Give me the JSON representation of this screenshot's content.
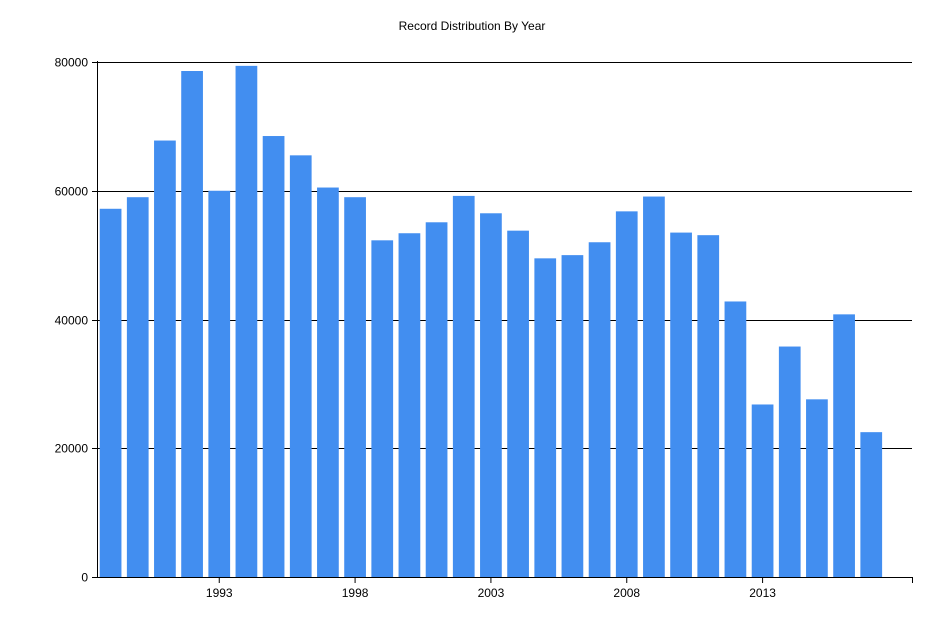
{
  "chart_data": {
    "type": "bar",
    "title": "Record Distribution By Year",
    "xlabel": "",
    "ylabel": "",
    "categories": [
      "1989",
      "1990",
      "1991",
      "1992",
      "1993",
      "1994",
      "1995",
      "1996",
      "1997",
      "1998",
      "1999",
      "2000",
      "2001",
      "2002",
      "2003",
      "2004",
      "2005",
      "2006",
      "2007",
      "2008",
      "2009",
      "2010",
      "2011",
      "2012",
      "2013",
      "2014",
      "2015",
      "2016",
      "2017",
      "2018"
    ],
    "values": [
      57200,
      59000,
      67800,
      78600,
      60000,
      79400,
      68500,
      65500,
      60500,
      59000,
      52300,
      53400,
      55100,
      59200,
      56500,
      53800,
      49500,
      50000,
      52000,
      56800,
      59100,
      53500,
      53100,
      42800,
      26800,
      35800,
      27600,
      40800,
      22500,
      0
    ],
    "x_tick_labels": [
      "1993",
      "1998",
      "2003",
      "2008",
      "2013"
    ],
    "y_tick_labels": [
      "0",
      "20000",
      "40000",
      "60000",
      "80000"
    ],
    "ylim": [
      0,
      80000
    ],
    "grid": "horizontal",
    "bar_color": "#428ef0"
  }
}
